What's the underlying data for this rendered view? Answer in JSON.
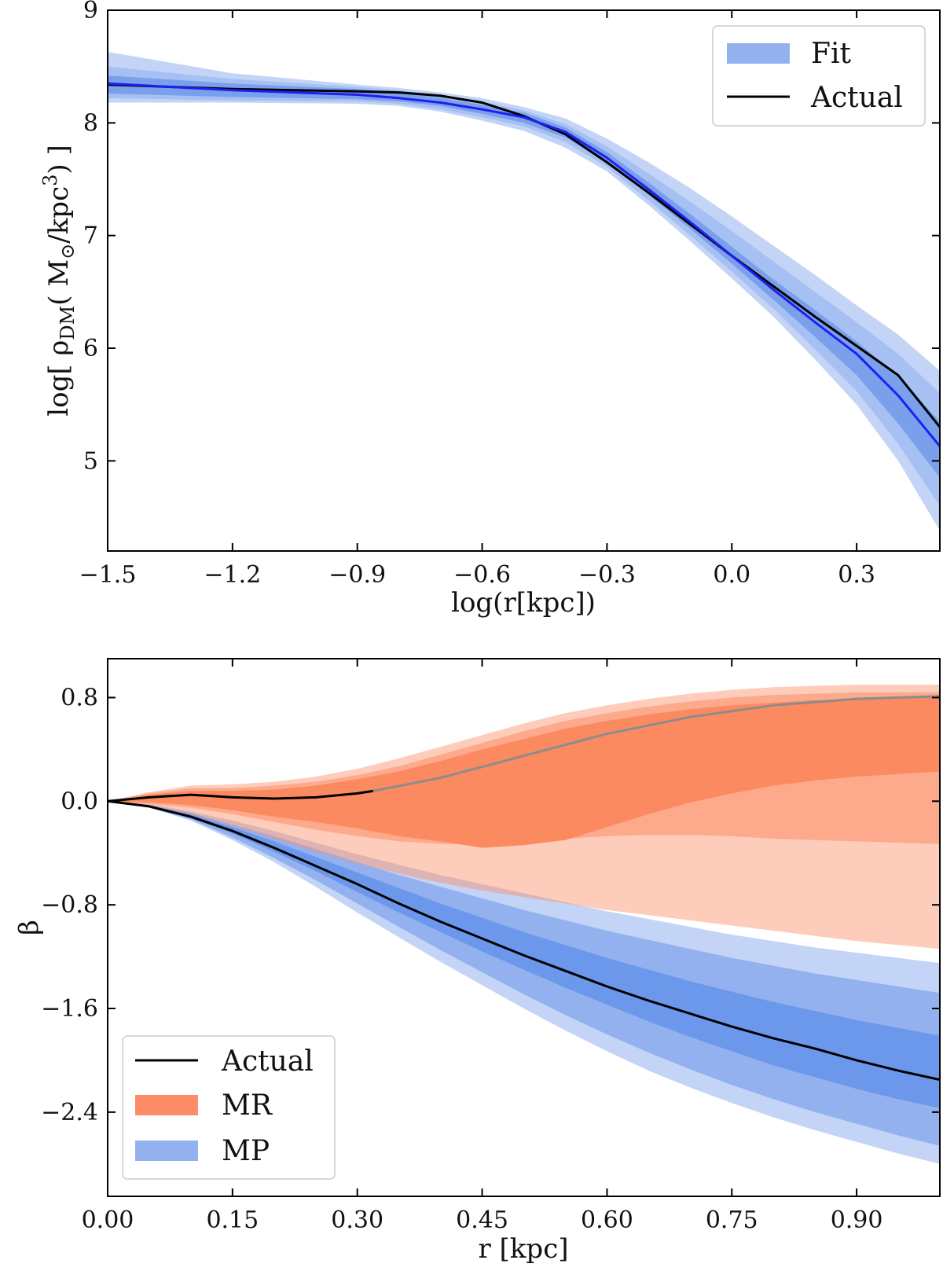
{
  "chart_data": [
    {
      "type": "line",
      "panel": "top",
      "title": "",
      "xlabel": "log(r[kpc])",
      "ylabel_parts": [
        "log[ ρ",
        "DM",
        "( M",
        "⊙",
        "/kpc",
        "3",
        ") ]"
      ],
      "xlim": [
        -1.5,
        0.5
      ],
      "ylim": [
        4.2,
        9.0
      ],
      "xticks": [
        -1.5,
        -1.2,
        -0.9,
        -0.6,
        -0.3,
        0.0,
        0.3
      ],
      "xtick_labels": [
        "−1.5",
        "−1.2",
        "−0.9",
        "−0.6",
        "−0.3",
        "0.0",
        "0.3"
      ],
      "yticks": [
        5,
        6,
        7,
        8,
        9
      ],
      "ytick_labels": [
        "5",
        "6",
        "7",
        "8",
        "9"
      ],
      "legend": {
        "placement": "top-right",
        "entries": [
          {
            "label": "Fit",
            "kind": "band",
            "color": "#93b1ef"
          },
          {
            "label": "Actual",
            "kind": "line",
            "color": "#000000"
          }
        ]
      },
      "x": [
        -1.5,
        -1.2,
        -0.9,
        -0.8,
        -0.7,
        -0.6,
        -0.5,
        -0.4,
        -0.3,
        -0.2,
        -0.1,
        0.0,
        0.1,
        0.2,
        0.3,
        0.4,
        0.5
      ],
      "series": [
        {
          "name": "Actual",
          "color": "#000000",
          "values": [
            8.34,
            8.3,
            8.28,
            8.27,
            8.24,
            8.18,
            8.06,
            7.9,
            7.65,
            7.38,
            7.1,
            6.82,
            6.55,
            6.28,
            6.02,
            5.76,
            5.3
          ]
        },
        {
          "name": "Fit median",
          "color": "#1f1ff0",
          "values": [
            8.35,
            8.29,
            8.25,
            8.22,
            8.18,
            8.12,
            8.05,
            7.92,
            7.69,
            7.41,
            7.12,
            6.82,
            6.52,
            6.23,
            5.95,
            5.58,
            5.13
          ]
        }
      ],
      "bands": [
        {
          "name": "Fit outer",
          "color": "#c3d4f6",
          "lower": [
            8.18,
            8.18,
            8.17,
            8.15,
            8.1,
            8.02,
            7.93,
            7.78,
            7.57,
            7.27,
            6.95,
            6.62,
            6.28,
            5.9,
            5.5,
            5.0,
            4.38
          ],
          "upper": [
            8.63,
            8.44,
            8.34,
            8.31,
            8.27,
            8.22,
            8.14,
            8.04,
            7.86,
            7.65,
            7.42,
            7.17,
            6.91,
            6.65,
            6.38,
            6.12,
            5.8
          ]
        },
        {
          "name": "Fit middle",
          "color": "#a6c0f3",
          "lower": [
            8.22,
            8.2,
            8.19,
            8.17,
            8.12,
            8.05,
            7.97,
            7.83,
            7.61,
            7.31,
            7.0,
            6.68,
            6.35,
            5.99,
            5.62,
            5.15,
            4.6
          ],
          "upper": [
            8.5,
            8.39,
            8.32,
            8.29,
            8.25,
            8.19,
            8.11,
            7.99,
            7.79,
            7.55,
            7.3,
            7.04,
            6.77,
            6.5,
            6.23,
            5.95,
            5.6
          ]
        },
        {
          "name": "Fit inner",
          "color": "#7aa0ec",
          "lower": [
            8.26,
            8.23,
            8.21,
            8.19,
            8.15,
            8.08,
            8.0,
            7.87,
            7.65,
            7.36,
            7.06,
            6.75,
            6.43,
            6.1,
            5.76,
            5.33,
            4.85
          ],
          "upper": [
            8.42,
            8.35,
            8.3,
            8.27,
            8.22,
            8.16,
            8.09,
            7.96,
            7.74,
            7.47,
            7.19,
            6.9,
            6.61,
            6.34,
            6.06,
            5.75,
            5.35
          ]
        }
      ]
    },
    {
      "type": "line",
      "panel": "bottom",
      "title": "",
      "xlabel": "r [kpc]",
      "ylabel": "β",
      "xlim": [
        0.0,
        1.0
      ],
      "ylim": [
        -3.05,
        1.1
      ],
      "xticks": [
        0.0,
        0.15,
        0.3,
        0.45,
        0.6,
        0.75,
        0.9
      ],
      "xtick_labels": [
        "0.00",
        "0.15",
        "0.30",
        "0.45",
        "0.60",
        "0.75",
        "0.90"
      ],
      "yticks": [
        0.8,
        0.0,
        -0.8,
        -1.6,
        -2.4
      ],
      "ytick_labels": [
        "0.8",
        "0.0",
        "−0.8",
        "−1.6",
        "−2.4"
      ],
      "legend": {
        "placement": "bottom-left",
        "entries": [
          {
            "label": "Actual",
            "kind": "line",
            "color": "#000000"
          },
          {
            "label": "MR",
            "kind": "band",
            "color": "#fc8d66"
          },
          {
            "label": "MP",
            "kind": "band",
            "color": "#93b1ef"
          }
        ]
      },
      "x": [
        0.0,
        0.05,
        0.1,
        0.15,
        0.2,
        0.25,
        0.3,
        0.35,
        0.4,
        0.45,
        0.5,
        0.55,
        0.6,
        0.65,
        0.7,
        0.75,
        0.8,
        0.85,
        0.9,
        0.95,
        1.0
      ],
      "series": [
        {
          "name": "Actual (MP)",
          "color": "#000000",
          "values": [
            0.0,
            -0.04,
            -0.12,
            -0.23,
            -0.36,
            -0.5,
            -0.64,
            -0.79,
            -0.93,
            -1.06,
            -1.19,
            -1.31,
            -1.43,
            -1.54,
            -1.64,
            -1.74,
            -1.83,
            -1.91,
            -2.0,
            -2.08,
            -2.15
          ]
        },
        {
          "name": "Actual (MR)",
          "color": "#000000",
          "x": [
            0.0,
            0.05,
            0.1,
            0.15,
            0.2,
            0.25,
            0.3,
            0.32
          ],
          "values": [
            0.0,
            0.03,
            0.05,
            0.03,
            0.02,
            0.03,
            0.06,
            0.08
          ]
        },
        {
          "name": "MR median",
          "color": "#8c8c8c",
          "x": [
            0.32,
            0.4,
            0.5,
            0.6,
            0.7,
            0.8,
            0.9,
            1.0
          ],
          "values": [
            0.08,
            0.18,
            0.35,
            0.52,
            0.65,
            0.74,
            0.79,
            0.81
          ]
        }
      ],
      "bands": [
        {
          "name": "MP outer",
          "color": "#c3d4f6",
          "lower": [
            0.0,
            -0.05,
            -0.15,
            -0.3,
            -0.47,
            -0.66,
            -0.86,
            -1.05,
            -1.24,
            -1.42,
            -1.6,
            -1.77,
            -1.93,
            -2.08,
            -2.21,
            -2.33,
            -2.44,
            -2.54,
            -2.63,
            -2.72,
            -2.8
          ],
          "upper": [
            0.0,
            -0.02,
            -0.08,
            -0.15,
            -0.23,
            -0.32,
            -0.41,
            -0.49,
            -0.57,
            -0.64,
            -0.71,
            -0.78,
            -0.85,
            -0.91,
            -0.97,
            -1.03,
            -1.08,
            -1.13,
            -1.17,
            -1.21,
            -1.25
          ]
        },
        {
          "name": "MP middle",
          "color": "#93b1ef",
          "lower": [
            0.0,
            -0.05,
            -0.14,
            -0.28,
            -0.44,
            -0.61,
            -0.79,
            -0.97,
            -1.15,
            -1.32,
            -1.49,
            -1.65,
            -1.8,
            -1.94,
            -2.07,
            -2.19,
            -2.3,
            -2.4,
            -2.49,
            -2.58,
            -2.66
          ],
          "upper": [
            0.0,
            -0.03,
            -0.09,
            -0.18,
            -0.27,
            -0.37,
            -0.47,
            -0.57,
            -0.66,
            -0.75,
            -0.84,
            -0.92,
            -1.0,
            -1.07,
            -1.14,
            -1.21,
            -1.27,
            -1.33,
            -1.38,
            -1.43,
            -1.48
          ]
        },
        {
          "name": "MP inner",
          "color": "#6b98ea",
          "lower": [
            0.0,
            -0.05,
            -0.13,
            -0.25,
            -0.39,
            -0.54,
            -0.7,
            -0.86,
            -1.01,
            -1.16,
            -1.3,
            -1.44,
            -1.57,
            -1.7,
            -1.82,
            -1.93,
            -2.04,
            -2.13,
            -2.22,
            -2.3,
            -2.37
          ],
          "upper": [
            0.0,
            -0.03,
            -0.1,
            -0.2,
            -0.31,
            -0.43,
            -0.55,
            -0.67,
            -0.79,
            -0.9,
            -1.01,
            -1.11,
            -1.21,
            -1.3,
            -1.39,
            -1.47,
            -1.55,
            -1.62,
            -1.69,
            -1.75,
            -1.81
          ]
        },
        {
          "name": "MR outer",
          "color": "rgba(252,141,102,0.45)",
          "lower": [
            0.0,
            -0.04,
            -0.1,
            -0.19,
            -0.29,
            -0.39,
            -0.48,
            -0.56,
            -0.63,
            -0.69,
            -0.74,
            -0.79,
            -0.84,
            -0.88,
            -0.92,
            -0.96,
            -1.0,
            -1.04,
            -1.08,
            -1.11,
            -1.14
          ],
          "upper": [
            0.0,
            0.07,
            0.12,
            0.13,
            0.15,
            0.19,
            0.25,
            0.33,
            0.42,
            0.51,
            0.6,
            0.68,
            0.74,
            0.79,
            0.83,
            0.86,
            0.88,
            0.89,
            0.9,
            0.9,
            0.9
          ]
        },
        {
          "name": "MR middle",
          "color": "rgba(252,141,102,0.55)",
          "lower": [
            0.0,
            -0.02,
            -0.05,
            -0.1,
            -0.16,
            -0.22,
            -0.27,
            -0.31,
            -0.33,
            -0.33,
            -0.31,
            -0.29,
            -0.27,
            -0.26,
            -0.26,
            -0.27,
            -0.29,
            -0.3,
            -0.31,
            -0.32,
            -0.33
          ],
          "upper": [
            0.0,
            0.06,
            0.1,
            0.1,
            0.12,
            0.15,
            0.2,
            0.27,
            0.36,
            0.45,
            0.54,
            0.62,
            0.68,
            0.73,
            0.77,
            0.8,
            0.82,
            0.83,
            0.84,
            0.84,
            0.84
          ]
        },
        {
          "name": "MR inner",
          "color": "#fc8a60",
          "lower": [
            0.0,
            -0.01,
            -0.03,
            -0.07,
            -0.12,
            -0.16,
            -0.21,
            -0.27,
            -0.31,
            -0.36,
            -0.34,
            -0.3,
            -0.2,
            -0.1,
            -0.01,
            0.06,
            0.12,
            0.16,
            0.19,
            0.21,
            0.23
          ],
          "upper": [
            0.0,
            0.05,
            0.08,
            0.08,
            0.09,
            0.12,
            0.17,
            0.23,
            0.31,
            0.4,
            0.48,
            0.56,
            0.62,
            0.67,
            0.71,
            0.74,
            0.76,
            0.78,
            0.79,
            0.8,
            0.8
          ]
        }
      ]
    }
  ]
}
